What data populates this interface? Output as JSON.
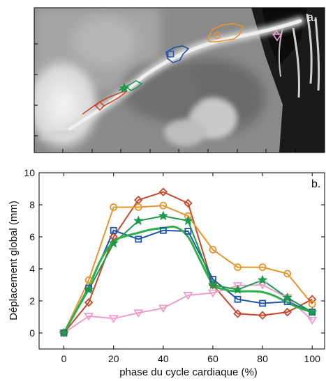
{
  "panels": {
    "top_label": "a.",
    "bottom_label": "b."
  },
  "colors": {
    "red": "#c8462a",
    "orange": "#e8952c",
    "blue": "#1f55a8",
    "green": "#1a9a4a",
    "pink": "#f09cc8",
    "fit_green": "#2cb14a"
  },
  "icons": {
    "red": "diamond",
    "orange": "circle",
    "blue": "square",
    "green": "star",
    "pink": "triangle-down"
  },
  "chart_data": [
    {
      "type": "image",
      "panel": "a.",
      "content": "angiographic CT image of a coronary artery with five trajectory markers"
    },
    {
      "type": "line",
      "panel": "b.",
      "xlabel": "phase du cycle cardiaque (%)",
      "ylabel": "Déplacement global (mm)",
      "xlim": [
        -10,
        105
      ],
      "ylim": [
        -1,
        10
      ],
      "xticks": [
        0,
        20,
        40,
        60,
        80,
        100
      ],
      "yticks": [
        0,
        2,
        4,
        6,
        8,
        10
      ],
      "grid": false,
      "legend": "none",
      "x": [
        0,
        10,
        20,
        30,
        40,
        50,
        60,
        70,
        80,
        90,
        100
      ],
      "series": [
        {
          "color": "red",
          "marker": "diamond",
          "values": [
            0,
            1.9,
            6.0,
            8.3,
            8.8,
            8.1,
            3.0,
            1.2,
            1.1,
            1.3,
            2.1
          ]
        },
        {
          "color": "orange",
          "marker": "circle",
          "values": [
            0,
            3.3,
            7.85,
            7.85,
            7.95,
            7.3,
            5.2,
            4.1,
            4.1,
            3.7,
            1.8
          ]
        },
        {
          "color": "blue",
          "marker": "square",
          "values": [
            0,
            2.8,
            6.4,
            5.85,
            6.4,
            6.35,
            3.35,
            2.1,
            1.85,
            1.95,
            1.3
          ]
        },
        {
          "color": "green",
          "marker": "star",
          "values": [
            0,
            2.7,
            5.6,
            7.0,
            7.3,
            7.0,
            3.0,
            2.7,
            3.3,
            2.2,
            1.3
          ]
        },
        {
          "color": "pink",
          "marker": "triangle-down",
          "values": [
            0,
            1.05,
            0.9,
            1.25,
            1.55,
            2.35,
            2.5,
            2.95,
            3.0,
            2.2,
            0.8
          ]
        }
      ],
      "fit": {
        "color": "fit_green",
        "x": [
          0,
          5,
          10,
          15,
          20,
          25,
          30,
          35,
          40,
          45,
          50,
          55,
          60,
          65,
          70,
          75,
          80,
          85,
          90,
          95,
          100
        ],
        "values": [
          0,
          1.4,
          2.9,
          4.6,
          5.7,
          6.05,
          6.25,
          6.45,
          6.55,
          6.6,
          6.0,
          4.5,
          3.05,
          2.7,
          2.6,
          2.6,
          2.55,
          2.3,
          1.9,
          1.55,
          1.3
        ]
      }
    }
  ]
}
